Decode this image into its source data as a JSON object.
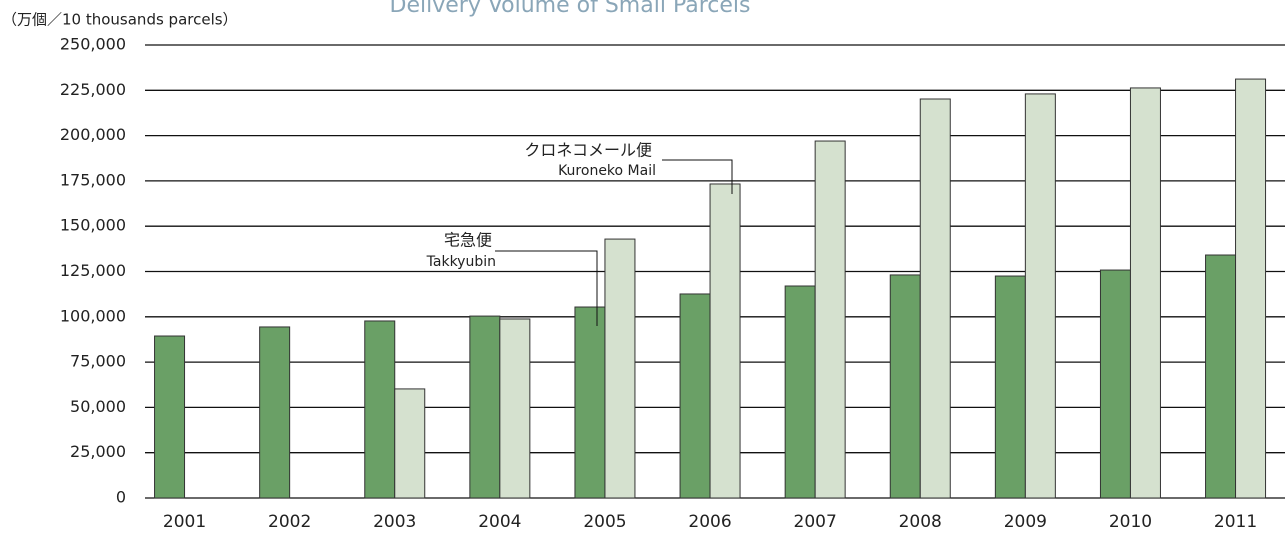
{
  "chart_data": {
    "type": "bar",
    "title": "Delivery Volume of Small Parcels",
    "y_axis_label": "（万個／10 thousands parcels）",
    "categories": [
      "2001",
      "2002",
      "2003",
      "2004",
      "2005",
      "2006",
      "2007",
      "2008",
      "2009",
      "2010",
      "2011"
    ],
    "series": [
      {
        "name": "宅急便 Takkyubin",
        "color": "#6aa066",
        "values": [
          89400,
          94400,
          97700,
          100400,
          105400,
          112600,
          117000,
          123100,
          122500,
          125800,
          134100
        ]
      },
      {
        "name": "クロネコメール便 Kuroneko Mail",
        "color": "#d5e1cf",
        "values": [
          null,
          null,
          60200,
          98800,
          142900,
          173300,
          197000,
          220200,
          223000,
          226300,
          231200
        ]
      }
    ],
    "annotations": [
      {
        "lines": [
          "宅急便",
          "Takkyubin"
        ]
      },
      {
        "lines": [
          "クロネコメール便",
          "Kuroneko Mail"
        ]
      }
    ],
    "ylim": [
      0,
      250000
    ],
    "yticks": [
      0,
      {
        "value": 25000,
        "label": "25,000"
      },
      {
        "value": 50000,
        "label": "50,000"
      },
      {
        "value": 75000,
        "label": "75,000"
      },
      {
        "value": 100000,
        "label": "100,000"
      },
      {
        "value": 125000,
        "label": "125,000"
      },
      {
        "value": 150000,
        "label": "150,000"
      },
      {
        "value": 175000,
        "label": "175,000"
      },
      {
        "value": 200000,
        "label": "200,000"
      },
      {
        "value": 225000,
        "label": "225,000"
      },
      {
        "value": 250000,
        "label": "250,000"
      }
    ],
    "grid": true
  }
}
